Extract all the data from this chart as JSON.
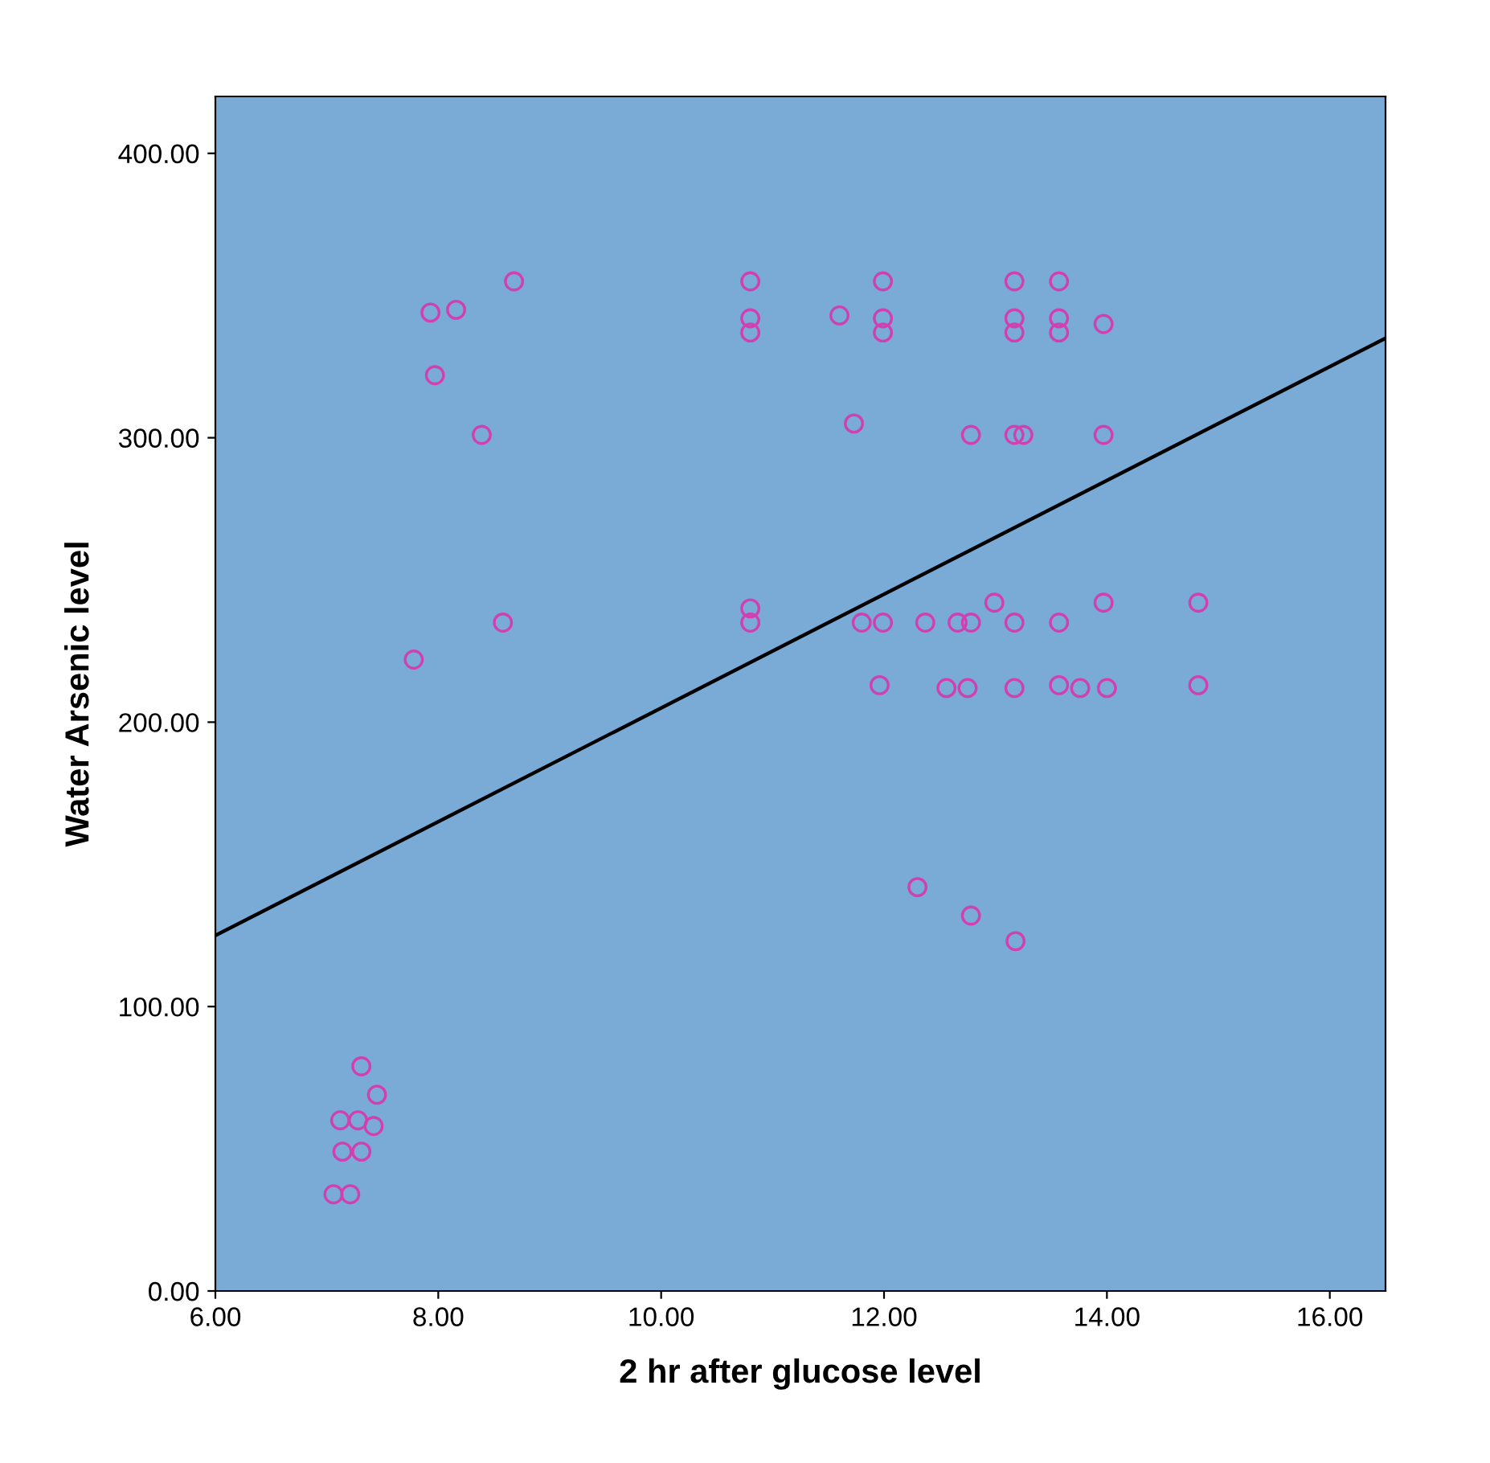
{
  "chart_data": {
    "type": "scatter",
    "xlabel": "2 hr after glucose level",
    "ylabel": "Water Arsenic level",
    "xlim": [
      6,
      16.5
    ],
    "xticks": [
      {
        "value": 6,
        "label": "6.00"
      },
      {
        "value": 8,
        "label": "8.00"
      },
      {
        "value": 10,
        "label": "10.00"
      },
      {
        "value": 12,
        "label": "12.00"
      },
      {
        "value": 14,
        "label": "14.00"
      },
      {
        "value": 16,
        "label": "16.00"
      }
    ],
    "ylim": [
      0,
      420
    ],
    "yticks": [
      {
        "value": 0,
        "label": "0.00"
      },
      {
        "value": 100,
        "label": "100.00"
      },
      {
        "value": 200,
        "label": "200.00"
      },
      {
        "value": 300,
        "label": "300.00"
      },
      {
        "value": 400,
        "label": "400.00"
      }
    ],
    "grid": false,
    "legend": false,
    "marker": "circle",
    "series": [
      {
        "color": "#d040b0",
        "x": [
          7.93,
          8.16,
          8.68,
          7.97,
          8.39,
          8.58,
          7.78,
          10.8,
          10.8,
          10.8,
          10.8,
          10.8,
          11.6,
          11.99,
          11.99,
          11.99,
          13.17,
          13.17,
          13.17,
          13.57,
          13.57,
          13.57,
          13.97,
          11.73,
          12.78,
          13.17,
          13.25,
          13.97,
          11.8,
          11.99,
          12.37,
          12.66,
          12.78,
          12.99,
          13.17,
          13.57,
          13.97,
          14.82,
          11.96,
          12.56,
          12.75,
          13.17,
          13.57,
          13.76,
          14.0,
          14.82,
          12.3,
          12.78,
          13.18,
          7.31,
          7.45,
          7.12,
          7.28,
          7.42,
          7.14,
          7.31,
          7.06,
          7.21
        ],
        "values": [
          344,
          345,
          355,
          322,
          301,
          235,
          222,
          355,
          342,
          337,
          240,
          235,
          343,
          355,
          342,
          337,
          355,
          342,
          337,
          355,
          342,
          337,
          340,
          305,
          301,
          301,
          301,
          301,
          235,
          235,
          235,
          235,
          235,
          242,
          235,
          235,
          242,
          242,
          213,
          212,
          212,
          212,
          213,
          212,
          212,
          213,
          142,
          132,
          123,
          79,
          69,
          60,
          60,
          58,
          49,
          49,
          34,
          34
        ]
      },
      {
        "type": "line",
        "color": "#000000",
        "marker": "none",
        "x": [
          6,
          16.5
        ],
        "values": [
          125,
          335
        ]
      }
    ]
  }
}
